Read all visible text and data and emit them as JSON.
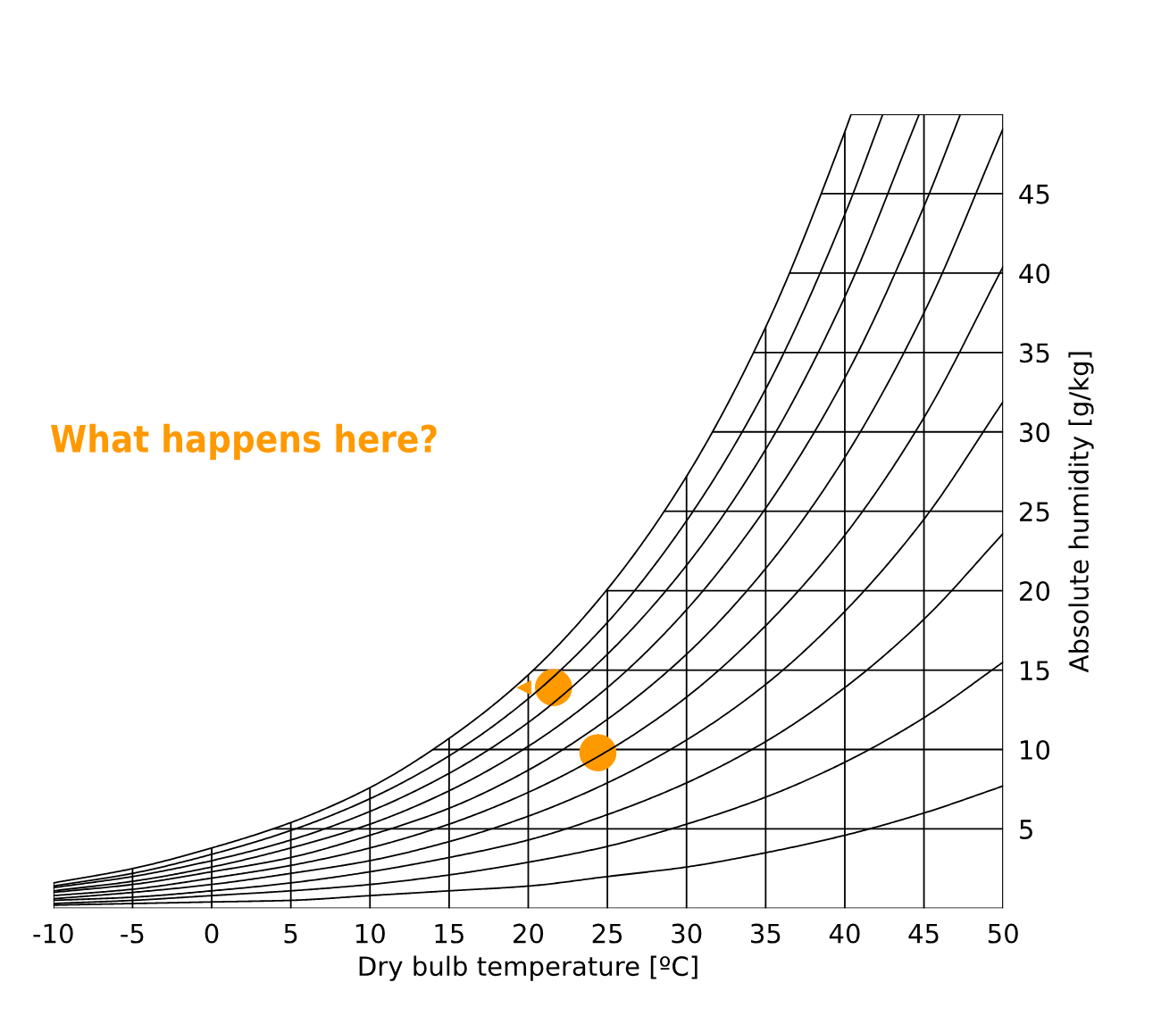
{
  "chart_data": {
    "type": "line",
    "annotations": [
      "What happens here?"
    ],
    "xlabel": "Dry bulb temperature [ºC]",
    "ylabel": "Absolute humidity [g/kg]",
    "x": [
      -10,
      -5,
      0,
      5,
      10,
      15,
      20,
      25,
      30,
      35,
      40,
      45,
      50
    ],
    "xlim": [
      -10,
      50
    ],
    "ylim": [
      0,
      50
    ],
    "xticks": [
      -10,
      -5,
      0,
      5,
      10,
      15,
      20,
      25,
      30,
      35,
      40,
      45,
      50
    ],
    "yticks": [
      5,
      10,
      15,
      20,
      25,
      30,
      35,
      40,
      45
    ],
    "grid": true,
    "marker": "none",
    "line_style": "solid",
    "series": [
      {
        "color": "#000000",
        "x": [
          -10,
          -5,
          0,
          5,
          10,
          15,
          20,
          25,
          30,
          35,
          40,
          40.4
        ],
        "values": [
          1.6,
          2.5,
          3.8,
          5.4,
          7.6,
          10.7,
          14.7,
          20.1,
          27.2,
          36.6,
          48.9,
          50
        ]
      },
      {
        "color": "#000000",
        "x": [
          -10,
          -5,
          0,
          5,
          10,
          15,
          20,
          25,
          30,
          35,
          40,
          42.4
        ],
        "values": [
          1.4,
          2.2,
          3.4,
          4.9,
          6.9,
          9.6,
          13.2,
          18.0,
          24.4,
          32.7,
          43.7,
          50
        ]
      },
      {
        "color": "#000000",
        "x": [
          -10,
          -5,
          0,
          5,
          10,
          15,
          20,
          25,
          30,
          35,
          40,
          44.7
        ],
        "values": [
          1.3,
          2.0,
          3.0,
          4.3,
          6.1,
          8.5,
          11.7,
          16.0,
          21.6,
          28.9,
          38.5,
          50
        ]
      },
      {
        "color": "#000000",
        "x": [
          -10,
          -5,
          0,
          5,
          10,
          15,
          20,
          25,
          30,
          35,
          40,
          45,
          47.3
        ],
        "values": [
          1.1,
          1.7,
          2.6,
          3.8,
          5.3,
          7.4,
          10.2,
          13.9,
          18.8,
          25.2,
          33.4,
          44.2,
          50
        ]
      },
      {
        "color": "#000000",
        "values": [
          1.0,
          1.5,
          2.3,
          3.2,
          4.6,
          6.3,
          8.7,
          11.9,
          16.0,
          21.4,
          28.4,
          37.5,
          49.1
        ]
      },
      {
        "color": "#000000",
        "values": [
          0.8,
          1.2,
          1.9,
          2.7,
          3.8,
          5.3,
          7.3,
          9.9,
          13.3,
          17.8,
          23.5,
          30.9,
          40.4
        ]
      },
      {
        "color": "#000000",
        "values": [
          0.6,
          1.0,
          1.5,
          2.2,
          3.0,
          4.2,
          5.8,
          7.9,
          10.6,
          14.1,
          18.7,
          24.5,
          31.9
        ]
      },
      {
        "color": "#000000",
        "values": [
          0.5,
          0.7,
          1.1,
          1.6,
          2.3,
          3.2,
          4.3,
          5.9,
          7.9,
          10.5,
          13.9,
          18.2,
          23.6
        ]
      },
      {
        "color": "#000000",
        "values": [
          0.3,
          0.5,
          0.8,
          1.1,
          1.5,
          2.1,
          2.9,
          3.9,
          5.3,
          7.0,
          9.2,
          12.0,
          15.5
        ]
      },
      {
        "color": "#000000",
        "values": [
          0.2,
          0.3,
          0.4,
          0.5,
          0.8,
          1.1,
          1.4,
          2.0,
          2.6,
          3.5,
          4.6,
          6.0,
          7.7
        ]
      },
      {
        "type": "scatter",
        "color": "#ff9900",
        "marker": "circle",
        "x": [
          21.6,
          24.4
        ],
        "values": [
          13.9,
          9.8
        ]
      }
    ]
  }
}
